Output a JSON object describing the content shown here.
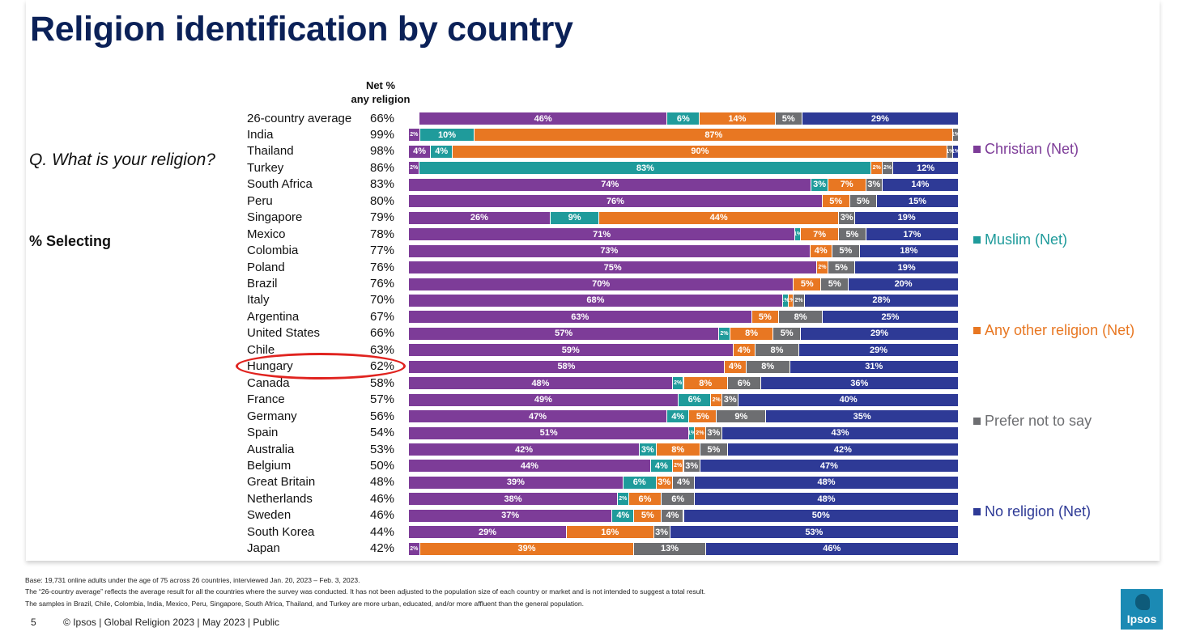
{
  "title": "Religion identification by country",
  "question": "Q. What is your religion?",
  "selecting": "% Selecting",
  "net_header": {
    "line1": "Net %",
    "line2": "any religion"
  },
  "colors": {
    "christian": "#7d3c98",
    "muslim": "#1f9b9b",
    "other": "#e87722",
    "prefer_not": "#6d6e71",
    "none": "#2e3a96",
    "title": "#0b2158",
    "highlight_circle": "#e0231f"
  },
  "legend": [
    {
      "label": "Christian (Net)",
      "color": "#7d3c98"
    },
    {
      "label": "Muslim (Net)",
      "color": "#1f9b9b"
    },
    {
      "label": "Any other religion (Net)",
      "color": "#e87722"
    },
    {
      "label": "Prefer not to say",
      "color": "#6d6e71"
    },
    {
      "label": "No religion (Net)",
      "color": "#2e3a96"
    }
  ],
  "highlighted_country": "Hungary",
  "chart_data": {
    "type": "bar",
    "orientation": "horizontal",
    "stacked": true,
    "categories": [
      "26-country average",
      "India",
      "Thailand",
      "Turkey",
      "South Africa",
      "Peru",
      "Singapore",
      "Mexico",
      "Colombia",
      "Poland",
      "Brazil",
      "Italy",
      "Argentina",
      "United States",
      "Chile",
      "Hungary",
      "Canada",
      "France",
      "Germany",
      "Spain",
      "Australia",
      "Belgium",
      "Great Britain",
      "Netherlands",
      "Sweden",
      "South Korea",
      "Japan"
    ],
    "net_any_religion": [
      "66%",
      "99%",
      "98%",
      "86%",
      "83%",
      "80%",
      "79%",
      "78%",
      "77%",
      "76%",
      "76%",
      "70%",
      "67%",
      "66%",
      "63%",
      "62%",
      "58%",
      "57%",
      "56%",
      "54%",
      "53%",
      "50%",
      "48%",
      "46%",
      "46%",
      "44%",
      "42%"
    ],
    "series": [
      {
        "name": "Christian (Net)",
        "values": [
          46,
          2,
          4,
          2,
          74,
          76,
          26,
          71,
          73,
          75,
          70,
          68,
          63,
          57,
          59,
          58,
          48,
          49,
          47,
          51,
          42,
          44,
          39,
          38,
          37,
          29,
          2
        ]
      },
      {
        "name": "Muslim (Net)",
        "values": [
          6,
          10,
          4,
          83,
          3,
          0,
          9,
          1,
          0,
          0,
          0,
          1,
          0,
          2,
          0,
          0,
          2,
          6,
          4,
          1,
          3,
          4,
          6,
          2,
          4,
          0,
          0
        ]
      },
      {
        "name": "Any other religion (Net)",
        "values": [
          14,
          87,
          90,
          2,
          7,
          5,
          44,
          7,
          4,
          2,
          5,
          1,
          5,
          8,
          4,
          4,
          8,
          2,
          5,
          2,
          8,
          2,
          3,
          6,
          5,
          16,
          39
        ]
      },
      {
        "name": "Prefer not to say",
        "values": [
          5,
          1,
          1,
          2,
          3,
          5,
          3,
          5,
          5,
          5,
          5,
          2,
          8,
          5,
          8,
          8,
          6,
          3,
          9,
          3,
          5,
          3,
          4,
          6,
          4,
          3,
          13
        ]
      },
      {
        "name": "No religion (Net)",
        "values": [
          29,
          0,
          1,
          12,
          14,
          15,
          19,
          17,
          18,
          19,
          20,
          28,
          25,
          29,
          29,
          31,
          36,
          40,
          35,
          43,
          42,
          47,
          48,
          48,
          50,
          53,
          46
        ]
      }
    ],
    "xlim": [
      0,
      100
    ]
  },
  "footnotes": [
    "Base: 19,731 online adults under the age of 75 across 26 countries, interviewed Jan. 20, 2023 – Feb. 3, 2023.",
    "The “26-country average” reflects the average result for all the countries where the survey was conducted. It has not been adjusted to the population size of each country or market and is not intended to suggest a total result.",
    "The samples in Brazil, Chile, Colombia, India, Mexico, Peru, Singapore, South Africa, Thailand, and Turkey are more urban, educated, and/or more affluent than the general population."
  ],
  "footer": {
    "page": "5",
    "text": "© Ipsos | Global Religion 2023 | May 2023 | Public"
  },
  "logo_text": "Ipsos"
}
